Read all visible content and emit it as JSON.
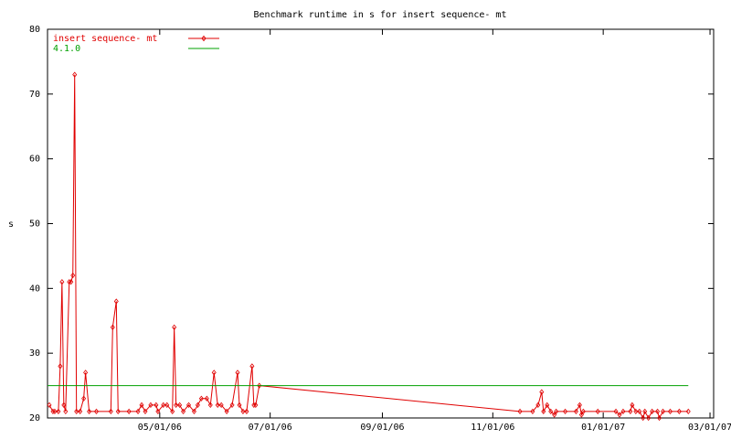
{
  "chart_data": {
    "type": "line",
    "title": "Benchmark runtime in s for insert sequence-  mt",
    "y_label": "s",
    "xlim": [
      "02/28/06",
      "03/03/07"
    ],
    "xticks": [
      "05/01/06",
      "07/01/06",
      "09/01/06",
      "11/01/06",
      "01/01/07",
      "03/01/07"
    ],
    "ylim": [
      20,
      80
    ],
    "yticks": [
      20,
      30,
      40,
      50,
      60,
      70,
      80
    ],
    "grid": false,
    "legend": "top-left",
    "series": [
      {
        "name": "insert sequence-  mt",
        "color": "#e00000",
        "markers": true,
        "x": [
          "03/01/06",
          "03/03/06",
          "03/04/06",
          "03/06/06",
          "03/07/06",
          "03/08/06",
          "03/09/06",
          "03/10/06",
          "03/12/06",
          "03/13/06",
          "03/14/06",
          "03/15/06",
          "03/16/06",
          "03/18/06",
          "03/20/06",
          "03/21/06",
          "03/23/06",
          "03/27/06",
          "04/04/06",
          "04/05/06",
          "04/07/06",
          "04/08/06",
          "04/14/06",
          "04/19/06",
          "04/21/06",
          "04/23/06",
          "04/26/06",
          "04/29/06",
          "04/30/06",
          "05/03/06",
          "05/05/06",
          "05/08/06",
          "05/09/06",
          "05/10/06",
          "05/12/06",
          "05/14/06",
          "05/17/06",
          "05/20/06",
          "05/22/06",
          "05/24/06",
          "05/27/06",
          "05/29/06",
          "05/31/06",
          "06/02/06",
          "06/04/06",
          "06/07/06",
          "06/10/06",
          "06/13/06",
          "06/14/06",
          "06/16/06",
          "06/18/06",
          "06/21/06",
          "06/22/06",
          "06/23/06",
          "06/25/06",
          "11/16/06",
          "11/23/06",
          "11/26/06",
          "11/28/06",
          "11/29/06",
          "12/01/06",
          "12/03/06",
          "12/05/06",
          "12/06/06",
          "12/11/06",
          "12/17/06",
          "12/19/06",
          "12/20/06",
          "12/21/06",
          "12/29/06",
          "01/08/07",
          "01/10/07",
          "01/12/07",
          "01/16/07",
          "01/17/07",
          "01/19/07",
          "01/21/07",
          "01/23/07",
          "01/24/07",
          "01/26/07",
          "01/28/07",
          "01/31/07",
          "02/01/07",
          "02/03/07",
          "02/07/07",
          "02/12/07",
          "02/17/07"
        ],
        "values": [
          22,
          21,
          21,
          21,
          28,
          41,
          22,
          21,
          41,
          41,
          42,
          73,
          21,
          21,
          23,
          27,
          21,
          21,
          21,
          34,
          38,
          21,
          21,
          21,
          22,
          21,
          22,
          22,
          21,
          22,
          22,
          21,
          34,
          22,
          22,
          21,
          22,
          21,
          22,
          23,
          23,
          22,
          27,
          22,
          22,
          21,
          22,
          27,
          22,
          21,
          21,
          28,
          22,
          22,
          25,
          21,
          21,
          22,
          24,
          21,
          22,
          21,
          20.5,
          21,
          21,
          21,
          22,
          20.5,
          21,
          21,
          21,
          20.5,
          21,
          21,
          22,
          21,
          21,
          20,
          21,
          20,
          21,
          21,
          20,
          21,
          21,
          21,
          21
        ]
      },
      {
        "name": "4.1.0",
        "color": "#00a000",
        "markers": false,
        "x": [
          "02/28/06",
          "02/17/07"
        ],
        "values": [
          25,
          25
        ]
      }
    ]
  }
}
